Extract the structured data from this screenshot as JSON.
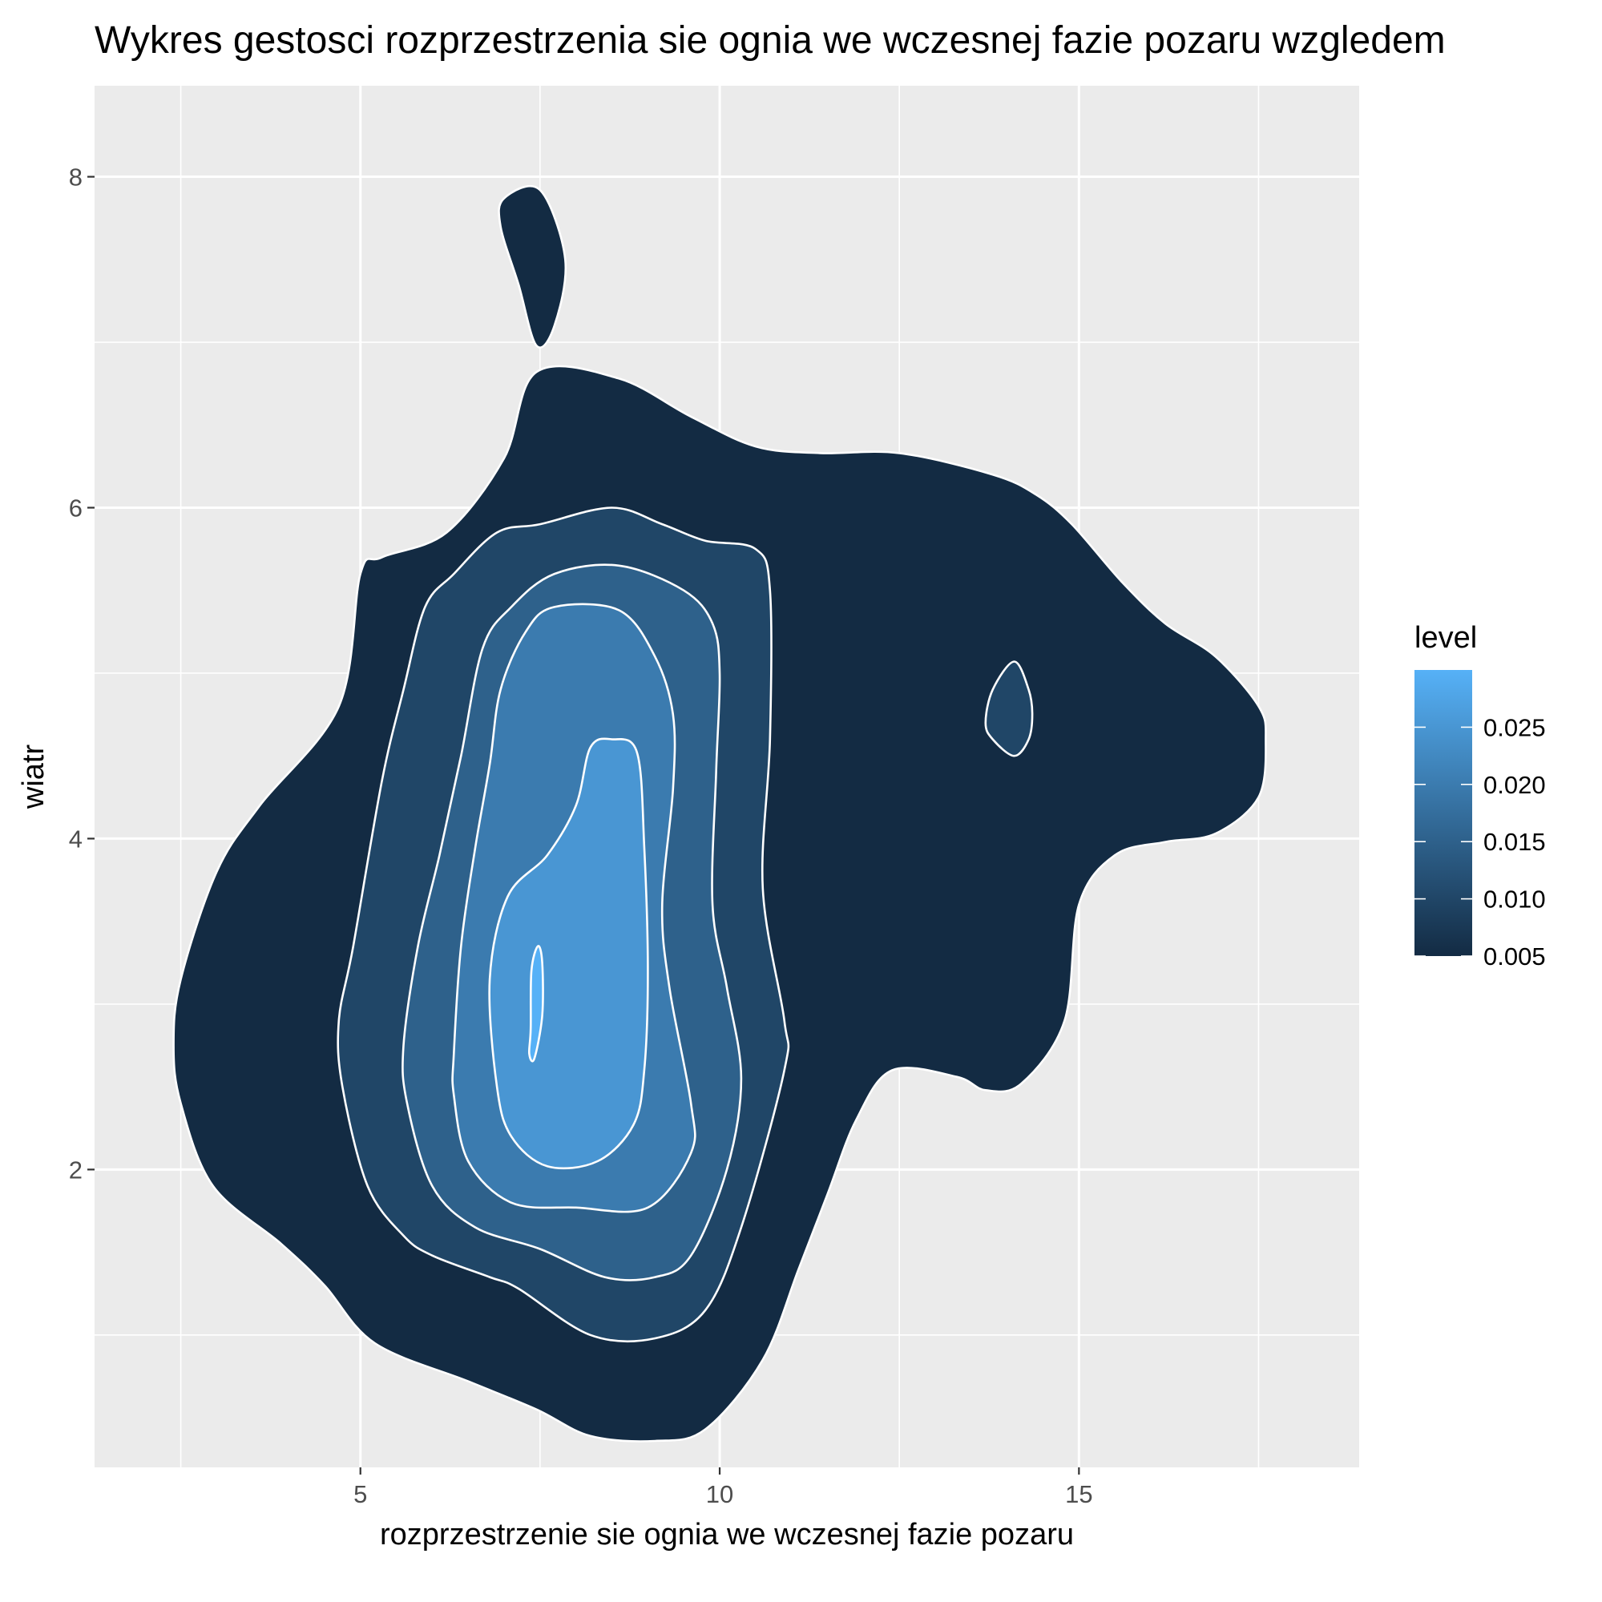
{
  "chart_data": {
    "type": "contour",
    "title": "Wykres gestosci rozprzestrzenia sie ognia we wczesnej fazie pozaru wzgledem",
    "xlabel": "rozprzestrzenie sie ognia we wczesnej fazie pozaru",
    "ylabel": "wiatr",
    "xlim": [
      1.3,
      18.9
    ],
    "ylim": [
      0.2,
      8.55
    ],
    "x_ticks": [
      5,
      10,
      15
    ],
    "x_tick_labels": [
      "5",
      "10",
      "15"
    ],
    "y_ticks": [
      2,
      4,
      6,
      8
    ],
    "y_tick_labels": [
      "2",
      "4",
      "6",
      "8"
    ],
    "grid": true,
    "legend": {
      "title": "level",
      "position": "right",
      "ticks": [
        0.005,
        0.01,
        0.015,
        0.02,
        0.025
      ],
      "tick_labels": [
        "0.005",
        "0.010",
        "0.015",
        "0.020",
        "0.025"
      ],
      "range": [
        0.005,
        0.03
      ],
      "color_low": "#132B43",
      "color_high": "#56B1F7"
    },
    "contour_color": "#ffffff",
    "contours": [
      {
        "level": 0.005,
        "points": [
          [
            2.4,
            2.75
          ],
          [
            2.5,
            2.4
          ],
          [
            2.95,
            1.9
          ],
          [
            3.9,
            1.55
          ],
          [
            4.5,
            1.3
          ],
          [
            5.2,
            0.95
          ],
          [
            6.5,
            0.72
          ],
          [
            7.45,
            0.55
          ],
          [
            8.2,
            0.39
          ],
          [
            9.1,
            0.36
          ],
          [
            9.8,
            0.43
          ],
          [
            10.6,
            0.85
          ],
          [
            11.1,
            1.4
          ],
          [
            11.5,
            1.85
          ],
          [
            11.9,
            2.3
          ],
          [
            12.4,
            2.6
          ],
          [
            13.3,
            2.56
          ],
          [
            13.7,
            2.48
          ],
          [
            14.2,
            2.52
          ],
          [
            14.8,
            2.9
          ],
          [
            15.0,
            3.6
          ],
          [
            15.5,
            3.9
          ],
          [
            16.2,
            3.98
          ],
          [
            16.9,
            4.03
          ],
          [
            17.5,
            4.25
          ],
          [
            17.6,
            4.6
          ],
          [
            17.5,
            4.8
          ],
          [
            16.9,
            5.1
          ],
          [
            16.2,
            5.3
          ],
          [
            15.6,
            5.55
          ],
          [
            14.9,
            5.9
          ],
          [
            14.4,
            6.08
          ],
          [
            13.8,
            6.2
          ],
          [
            12.5,
            6.33
          ],
          [
            11.4,
            6.33
          ],
          [
            10.5,
            6.37
          ],
          [
            9.6,
            6.55
          ],
          [
            8.6,
            6.78
          ],
          [
            7.45,
            6.82
          ],
          [
            7.0,
            6.3
          ],
          [
            6.2,
            5.85
          ],
          [
            5.3,
            5.7
          ],
          [
            5.0,
            5.6
          ],
          [
            4.7,
            4.8
          ],
          [
            3.6,
            4.2
          ],
          [
            3.0,
            3.8
          ],
          [
            2.5,
            3.15
          ],
          [
            2.4,
            2.75
          ]
        ]
      },
      {
        "level": 0.005,
        "points": [
          [
            7.0,
            7.87
          ],
          [
            7.5,
            7.92
          ],
          [
            7.85,
            7.5
          ],
          [
            7.7,
            7.1
          ],
          [
            7.45,
            6.98
          ],
          [
            7.2,
            7.35
          ],
          [
            6.95,
            7.7
          ],
          [
            7.0,
            7.87
          ]
        ]
      },
      {
        "level": 0.01,
        "points": [
          [
            4.7,
            2.9
          ],
          [
            4.75,
            2.5
          ],
          [
            5.1,
            1.9
          ],
          [
            5.6,
            1.6
          ],
          [
            6.0,
            1.48
          ],
          [
            6.8,
            1.35
          ],
          [
            7.2,
            1.28
          ],
          [
            8.2,
            1.0
          ],
          [
            9.1,
            0.98
          ],
          [
            9.8,
            1.15
          ],
          [
            10.3,
            1.65
          ],
          [
            10.9,
            2.6
          ],
          [
            10.9,
            2.9
          ],
          [
            10.6,
            3.7
          ],
          [
            10.7,
            4.6
          ],
          [
            10.7,
            5.5
          ],
          [
            10.5,
            5.75
          ],
          [
            9.8,
            5.8
          ],
          [
            9.2,
            5.9
          ],
          [
            8.5,
            6.0
          ],
          [
            7.5,
            5.9
          ],
          [
            6.9,
            5.85
          ],
          [
            6.3,
            5.6
          ],
          [
            5.9,
            5.4
          ],
          [
            5.6,
            4.9
          ],
          [
            5.3,
            4.35
          ],
          [
            4.9,
            3.35
          ],
          [
            4.7,
            2.9
          ]
        ]
      },
      {
        "level": 0.01,
        "points": [
          [
            13.7,
            4.7
          ],
          [
            13.8,
            4.9
          ],
          [
            14.1,
            5.07
          ],
          [
            14.3,
            4.9
          ],
          [
            14.35,
            4.75
          ],
          [
            14.3,
            4.6
          ],
          [
            14.1,
            4.5
          ],
          [
            13.8,
            4.6
          ],
          [
            13.7,
            4.7
          ]
        ]
      },
      {
        "level": 0.015,
        "points": [
          [
            5.6,
            2.75
          ],
          [
            5.65,
            2.4
          ],
          [
            6.0,
            1.9
          ],
          [
            6.6,
            1.65
          ],
          [
            7.5,
            1.52
          ],
          [
            8.4,
            1.35
          ],
          [
            9.1,
            1.35
          ],
          [
            9.6,
            1.48
          ],
          [
            10.1,
            2.0
          ],
          [
            10.3,
            2.55
          ],
          [
            10.1,
            3.1
          ],
          [
            9.9,
            3.6
          ],
          [
            9.95,
            4.4
          ],
          [
            10.0,
            5.0
          ],
          [
            9.9,
            5.3
          ],
          [
            9.5,
            5.5
          ],
          [
            8.6,
            5.65
          ],
          [
            7.7,
            5.6
          ],
          [
            7.1,
            5.4
          ],
          [
            6.7,
            5.15
          ],
          [
            6.4,
            4.5
          ],
          [
            6.1,
            3.9
          ],
          [
            5.8,
            3.35
          ],
          [
            5.6,
            2.75
          ]
        ]
      },
      {
        "level": 0.02,
        "points": [
          [
            6.3,
            2.7
          ],
          [
            6.3,
            2.45
          ],
          [
            6.5,
            2.05
          ],
          [
            7.1,
            1.8
          ],
          [
            8.0,
            1.77
          ],
          [
            9.0,
            1.77
          ],
          [
            9.6,
            2.1
          ],
          [
            9.6,
            2.4
          ],
          [
            9.3,
            3.1
          ],
          [
            9.2,
            3.6
          ],
          [
            9.35,
            4.3
          ],
          [
            9.35,
            4.75
          ],
          [
            9.1,
            5.1
          ],
          [
            8.6,
            5.38
          ],
          [
            7.7,
            5.4
          ],
          [
            7.3,
            5.25
          ],
          [
            6.95,
            4.9
          ],
          [
            6.8,
            4.45
          ],
          [
            6.6,
            3.95
          ],
          [
            6.4,
            3.35
          ],
          [
            6.3,
            2.7
          ]
        ]
      },
      {
        "level": 0.025,
        "points": [
          [
            6.9,
            2.5
          ],
          [
            7.1,
            2.2
          ],
          [
            7.6,
            2.02
          ],
          [
            8.3,
            2.05
          ],
          [
            8.8,
            2.27
          ],
          [
            8.95,
            2.6
          ],
          [
            9.0,
            3.2
          ],
          [
            8.95,
            3.95
          ],
          [
            8.85,
            4.52
          ],
          [
            8.5,
            4.6
          ],
          [
            8.2,
            4.55
          ],
          [
            8.0,
            4.2
          ],
          [
            7.6,
            3.9
          ],
          [
            7.05,
            3.65
          ],
          [
            6.8,
            3.15
          ],
          [
            6.9,
            2.5
          ]
        ]
      },
      {
        "level": 0.03,
        "points": [
          [
            7.42,
            2.67
          ],
          [
            7.53,
            2.93
          ],
          [
            7.53,
            3.25
          ],
          [
            7.47,
            3.35
          ],
          [
            7.38,
            3.2
          ],
          [
            7.37,
            2.85
          ],
          [
            7.35,
            2.7
          ],
          [
            7.42,
            2.67
          ]
        ]
      }
    ]
  }
}
